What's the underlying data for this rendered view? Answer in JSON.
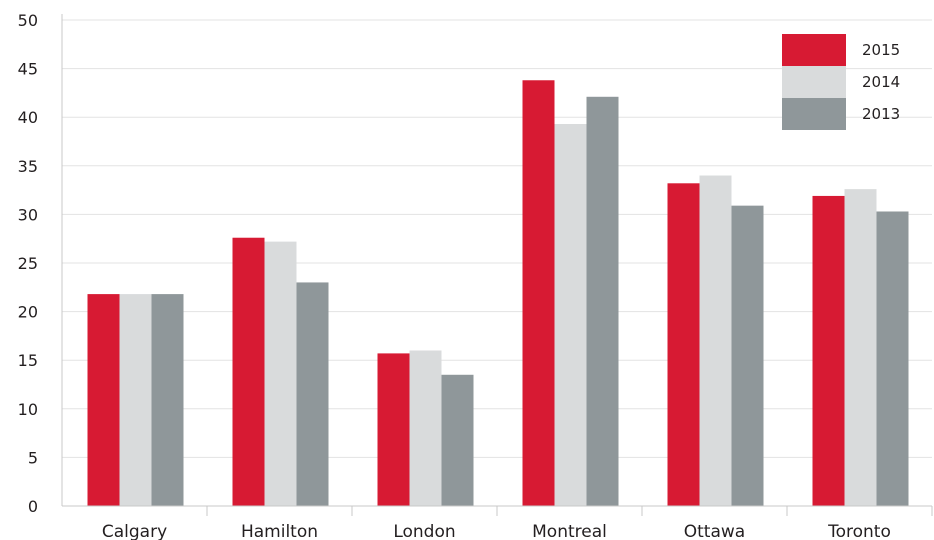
{
  "chart_data": {
    "type": "bar",
    "title": "",
    "xlabel": "",
    "ylabel": "",
    "categories": [
      "Calgary",
      "Hamilton",
      "London",
      "Montreal",
      "Ottawa",
      "Toronto"
    ],
    "series": [
      {
        "name": "2015",
        "color": "#d71a33",
        "values": [
          21.8,
          27.6,
          15.7,
          43.8,
          33.2,
          31.9
        ]
      },
      {
        "name": "2014",
        "color": "#d9dbdc",
        "values": [
          21.8,
          27.2,
          16.0,
          39.3,
          34.0,
          32.6
        ]
      },
      {
        "name": "2013",
        "color": "#8f979a",
        "values": [
          21.8,
          23.0,
          13.5,
          42.1,
          30.9,
          30.3
        ]
      }
    ],
    "ylim": [
      0,
      50
    ],
    "yticks": [
      0,
      5,
      10,
      15,
      20,
      25,
      30,
      35,
      40,
      45,
      50
    ],
    "grid": true,
    "legend": {
      "position": "top-right"
    }
  }
}
